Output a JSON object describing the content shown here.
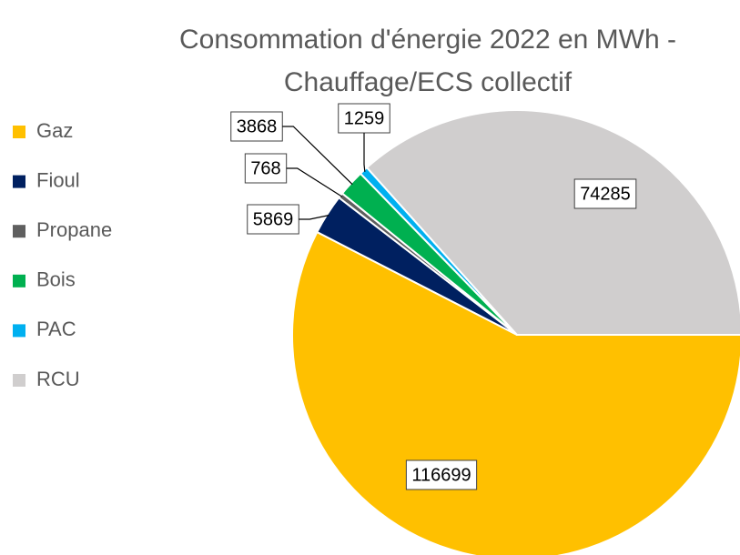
{
  "chart_data": {
    "type": "pie",
    "title": [
      "Consommation d'énergie 2022 en MWh -",
      "Chauffage/ECS collectif"
    ],
    "categories": [
      "Gaz",
      "Fioul",
      "Propane",
      "Bois",
      "PAC",
      "RCU"
    ],
    "values": [
      116699,
      5869,
      768,
      3868,
      1259,
      74285
    ],
    "colors": [
      "#FFC000",
      "#002060",
      "#5f5f5f",
      "#00B050",
      "#00B0F0",
      "#D0CECE"
    ],
    "legend": "left"
  }
}
